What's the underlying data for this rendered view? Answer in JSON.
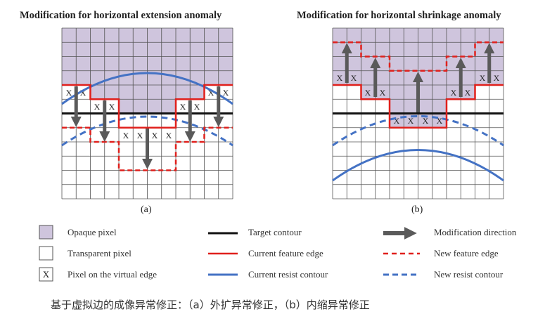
{
  "panel_a": {
    "title": "Modification for horizontal extension anomaly",
    "label": "(a)",
    "x_mark": "X"
  },
  "panel_b": {
    "title": "Modification for horizontal shrinkage anomaly",
    "label": "(b)",
    "x_mark": "X"
  },
  "legend": {
    "opaque_pixel": "Opaque pixel",
    "transparent_pixel": "Transparent pixel",
    "x_symbol": "X",
    "virtual_edge_pixel": "Pixel on the virtual edge",
    "target_contour": "Target contour",
    "current_feature_edge": "Current feature edge",
    "current_resist_contour": "Current resist contour",
    "modification_direction": "Modification direction",
    "new_feature_edge": "New feature edge",
    "new_resist_contour": "New resist contour"
  },
  "caption": "基于虚拟边的成像异常修正：（a）外扩异常修正，（b）内缩异常修正",
  "colors": {
    "opaque_fill": "#cfc5dd",
    "grid_line": "#555555",
    "target": "#111111",
    "feature_edge": "#e0201c",
    "resist_contour": "#4472c4",
    "arrow": "#555555"
  }
}
